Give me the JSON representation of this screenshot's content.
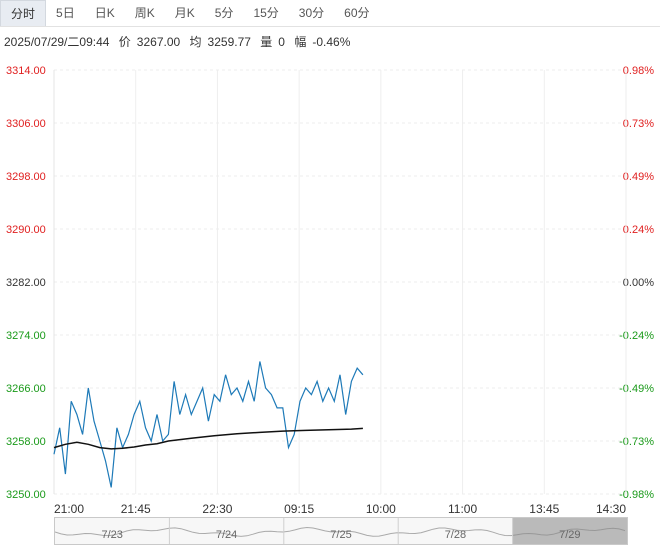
{
  "tabs": [
    "分时",
    "5日",
    "日K",
    "周K",
    "月K",
    "5分",
    "15分",
    "30分",
    "60分"
  ],
  "active_tab": "分时",
  "info": {
    "datetime": "2025/07/29/二09:44",
    "price_label": "价",
    "price": "3267.00",
    "avg_label": "均",
    "avg": "3259.77",
    "vol_label": "量",
    "vol": "0",
    "chg_label": "幅",
    "chg": "-0.46%"
  },
  "colors": {
    "up": "#e02020",
    "down": "#1a9a1a",
    "neutral": "#333333",
    "price_line": "#1e7ab8",
    "avg_line": "#111111"
  },
  "chart_data": {
    "type": "line",
    "price_ticks": [
      "3314.00",
      "3306.00",
      "3298.00",
      "3290.00",
      "3282.00",
      "3274.00",
      "3266.00",
      "3258.00",
      "3250.00"
    ],
    "pct_ticks": [
      "0.98%",
      "0.73%",
      "0.49%",
      "0.24%",
      "0.00%",
      "-0.24%",
      "-0.49%",
      "-0.73%",
      "-0.98%"
    ],
    "time_ticks": [
      "21:00",
      "21:45",
      "22:30",
      "09:15",
      "10:00",
      "11:00",
      "13:45",
      "14:30"
    ],
    "ylim": [
      3250,
      3314
    ],
    "x_index_max": 100,
    "series": [
      {
        "x": [
          0,
          1,
          2,
          3,
          4,
          5,
          6,
          7,
          8,
          9,
          10,
          11,
          12,
          13,
          14,
          15,
          16,
          17,
          18,
          19,
          20,
          21,
          22,
          23,
          24,
          25,
          26,
          27,
          28,
          29,
          30,
          31,
          32,
          33,
          34,
          35,
          36,
          37,
          38,
          39,
          40,
          41,
          42,
          43,
          44,
          45,
          46,
          47,
          48,
          49,
          50,
          51,
          52,
          53,
          54
        ],
        "values": [
          3256,
          3260,
          3253,
          3264,
          3262,
          3259,
          3266,
          3261,
          3258,
          3255,
          3251,
          3260,
          3257,
          3259,
          3262,
          3264,
          3260,
          3258,
          3262,
          3258,
          3259,
          3267,
          3262,
          3265,
          3262,
          3264,
          3266,
          3261,
          3265,
          3264,
          3268,
          3265,
          3266,
          3264,
          3267,
          3264,
          3270,
          3266,
          3265,
          3263,
          3263,
          3257,
          3259,
          3264,
          3266,
          3265,
          3267,
          3264,
          3266,
          3264,
          3268,
          3262,
          3267,
          3269,
          3268
        ]
      },
      {
        "x": [
          0,
          2,
          4,
          6,
          8,
          10,
          12,
          14,
          16,
          18,
          20,
          24,
          28,
          32,
          36,
          40,
          44,
          48,
          52,
          54
        ],
        "values": [
          3257,
          3257.5,
          3257.8,
          3257.5,
          3257,
          3256.8,
          3256.9,
          3257.1,
          3257.4,
          3257.6,
          3258,
          3258.4,
          3258.8,
          3259.1,
          3259.3,
          3259.5,
          3259.6,
          3259.7,
          3259.8,
          3259.9
        ]
      }
    ]
  },
  "navigator": {
    "dates": [
      "7/23",
      "7/24",
      "7/25",
      "7/28",
      "7/29"
    ]
  }
}
